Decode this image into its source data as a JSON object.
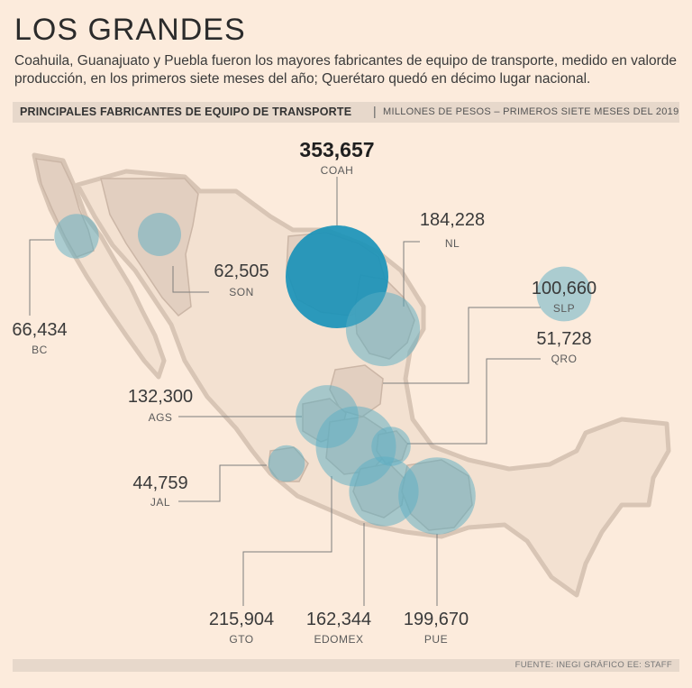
{
  "header": {
    "title": "LOS GRANDES",
    "subtitle": "Coahuila, Guanajuato y Puebla fueron los mayores fabricantes de equipo de transporte, medido en valorde producción, en los primeros siete meses del año; Querétaro quedó en décimo lugar nacional."
  },
  "bar": {
    "label": "PRINCIPALES FABRICANTES DE EQUIPO DE TRANSPORTE",
    "separator": "|",
    "sublabel": "MILLONES DE PESOS – PRIMEROS SIETE MESES DEL 2019"
  },
  "footer": {
    "source": "FUENTE: INEGI GRÁFICO EE: STAFF"
  },
  "colors": {
    "background": "#fcebdc",
    "land": "#e2cfc0",
    "border": "#c8b2a2",
    "bubble": "#5aaec4",
    "bubble_main": "#1a93b8",
    "text": "#3a3a3a"
  },
  "chart_data": {
    "type": "proportional-symbol map",
    "title": "PRINCIPALES FABRICANTES DE EQUIPO DE TRANSPORTE",
    "units": "MILLONES DE PESOS – PRIMEROS SIETE MESES DEL 2019",
    "states": [
      {
        "code": "COAH",
        "value": 353657,
        "label": "353,657",
        "highlight": true
      },
      {
        "code": "NL",
        "value": 184228,
        "label": "184,228"
      },
      {
        "code": "SON",
        "value": 62505,
        "label": "62,505"
      },
      {
        "code": "BC",
        "value": 66434,
        "label": "66,434"
      },
      {
        "code": "SLP",
        "value": 100660,
        "label": "100,660"
      },
      {
        "code": "QRO",
        "value": 51728,
        "label": "51,728"
      },
      {
        "code": "AGS",
        "value": 132300,
        "label": "132,300"
      },
      {
        "code": "JAL",
        "value": 44759,
        "label": "44,759"
      },
      {
        "code": "GTO",
        "value": 215904,
        "label": "215,904"
      },
      {
        "code": "EDOMEX",
        "value": 162344,
        "label": "162,344"
      },
      {
        "code": "PUE",
        "value": 199670,
        "label": "199,670"
      }
    ]
  }
}
